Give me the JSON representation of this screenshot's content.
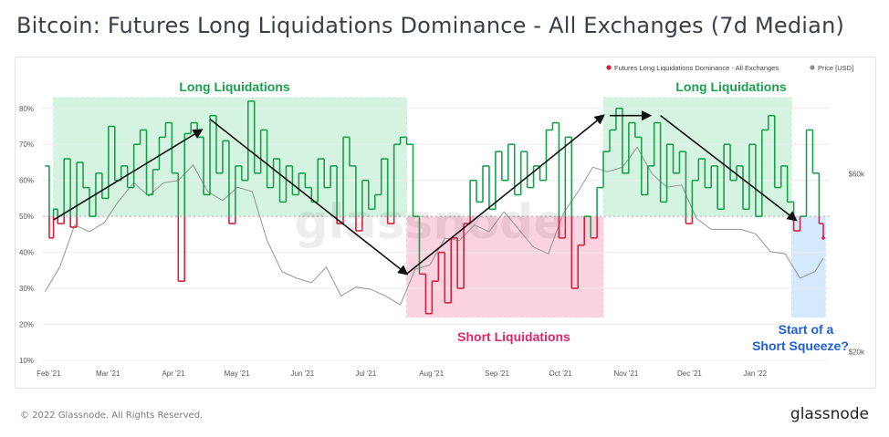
{
  "title": "Bitcoin: Futures Long Liquidations Dominance - All Exchanges (7d Median)",
  "footer": {
    "copyright": "© 2022 Glassnode. All Rights Reserved.",
    "brand": "glassnode"
  },
  "watermark": "glassnode",
  "colors": {
    "long": "#1aa04d",
    "short": "#d8203a",
    "price": "#8a8a8a",
    "long_zone": "#c6efd7",
    "short_zone": "#fac4d6",
    "squeeze_zone": "#c7e1fb",
    "long_label": "#1aa04d",
    "short_label": "#e3246a",
    "squeeze_label": "#1f5fd6"
  },
  "chart_data": {
    "type": "line",
    "x_ticks": [
      "Feb '21",
      "Mar '21",
      "Apr '21",
      "May '21",
      "Jun '21",
      "Jul '21",
      "Aug '21",
      "Sep '21",
      "Oct '21",
      "Nov '21",
      "Dec '21",
      "Jan '22"
    ],
    "y_ticks": [
      "10%",
      "20%",
      "30%",
      "40%",
      "50%",
      "60%",
      "70%",
      "80%"
    ],
    "ylim": [
      10,
      84
    ],
    "threshold": 50,
    "y2_ticks": [
      "$20k",
      "$60k"
    ],
    "y2lim": [
      18000,
      78000
    ],
    "legend": {
      "position": "top-right",
      "items": [
        {
          "name": "Futures Long Liquidations Dominance - All Exchanges",
          "color": "#d8203a"
        },
        {
          "name": "Price [USD]",
          "color": "#8a8a8a"
        }
      ]
    },
    "series": [
      {
        "name": "Futures Long Liquidations Dominance - All Exchanges",
        "x": [
          "2021-02-01",
          "2021-02-03",
          "2021-02-05",
          "2021-02-07",
          "2021-02-10",
          "2021-02-13",
          "2021-02-16",
          "2021-02-19",
          "2021-02-22",
          "2021-02-25",
          "2021-02-28",
          "2021-03-03",
          "2021-03-06",
          "2021-03-09",
          "2021-03-12",
          "2021-03-15",
          "2021-03-18",
          "2021-03-21",
          "2021-03-24",
          "2021-03-27",
          "2021-03-30",
          "2021-04-02",
          "2021-04-05",
          "2021-04-08",
          "2021-04-11",
          "2021-04-14",
          "2021-04-17",
          "2021-04-20",
          "2021-04-23",
          "2021-04-26",
          "2021-04-29",
          "2021-05-02",
          "2021-05-05",
          "2021-05-08",
          "2021-05-11",
          "2021-05-14",
          "2021-05-17",
          "2021-05-20",
          "2021-05-23",
          "2021-05-26",
          "2021-05-29",
          "2021-06-01",
          "2021-06-04",
          "2021-06-07",
          "2021-06-10",
          "2021-06-13",
          "2021-06-16",
          "2021-06-19",
          "2021-06-22",
          "2021-06-25",
          "2021-06-28",
          "2021-07-01",
          "2021-07-04",
          "2021-07-07",
          "2021-07-10",
          "2021-07-13",
          "2021-07-16",
          "2021-07-19",
          "2021-07-22",
          "2021-07-25",
          "2021-07-28",
          "2021-07-31",
          "2021-08-03",
          "2021-08-06",
          "2021-08-09",
          "2021-08-12",
          "2021-08-15",
          "2021-08-18",
          "2021-08-21",
          "2021-08-24",
          "2021-08-27",
          "2021-08-30",
          "2021-09-02",
          "2021-09-05",
          "2021-09-08",
          "2021-09-11",
          "2021-09-14",
          "2021-09-17",
          "2021-09-20",
          "2021-09-23",
          "2021-09-26",
          "2021-09-29",
          "2021-10-02",
          "2021-10-05",
          "2021-10-08",
          "2021-10-11",
          "2021-10-14",
          "2021-10-17",
          "2021-10-20",
          "2021-10-23",
          "2021-10-26",
          "2021-10-29",
          "2021-11-01",
          "2021-11-04",
          "2021-11-07",
          "2021-11-10",
          "2021-11-13",
          "2021-11-16",
          "2021-11-19",
          "2021-11-22",
          "2021-11-25",
          "2021-11-28",
          "2021-12-01",
          "2021-12-04",
          "2021-12-07",
          "2021-12-10",
          "2021-12-13",
          "2021-12-16",
          "2021-12-19",
          "2021-12-22",
          "2021-12-25",
          "2021-12-28",
          "2021-12-31",
          "2022-01-03",
          "2022-01-06",
          "2022-01-09",
          "2022-01-12",
          "2022-01-15",
          "2022-01-18",
          "2022-01-21",
          "2022-01-24",
          "2022-01-27",
          "2022-01-30",
          "2022-02-02",
          "2022-02-04"
        ],
        "values": [
          64,
          44,
          52,
          48,
          66,
          47,
          65,
          58,
          50,
          62,
          55,
          75,
          60,
          64,
          58,
          70,
          74,
          56,
          63,
          72,
          76,
          62,
          32,
          73,
          76,
          72,
          56,
          78,
          62,
          71,
          48,
          64,
          60,
          82,
          62,
          74,
          58,
          66,
          54,
          64,
          56,
          62,
          58,
          54,
          66,
          58,
          64,
          48,
          72,
          64,
          46,
          60,
          52,
          56,
          66,
          48,
          70,
          72,
          70,
          50,
          34,
          23,
          32,
          40,
          26,
          44,
          30,
          48,
          60,
          54,
          64,
          52,
          68,
          60,
          70,
          56,
          68,
          58,
          64,
          60,
          74,
          76,
          44,
          72,
          30,
          42,
          50,
          44,
          58,
          68,
          74,
          80,
          62,
          76,
          72,
          56,
          64,
          76,
          54,
          70,
          62,
          68,
          48,
          60,
          66,
          58,
          64,
          52,
          70,
          60,
          64,
          52,
          70,
          50,
          74,
          78,
          58,
          64,
          54,
          46,
          50,
          74,
          62,
          48,
          44
        ],
        "color_above": "#1aa04d",
        "color_below": "#d8203a"
      },
      {
        "name": "Price [USD]",
        "x": [
          "2021-02-01",
          "2021-02-08",
          "2021-02-15",
          "2021-02-22",
          "2021-03-01",
          "2021-03-08",
          "2021-03-15",
          "2021-03-22",
          "2021-03-29",
          "2021-04-05",
          "2021-04-12",
          "2021-04-19",
          "2021-04-26",
          "2021-05-03",
          "2021-05-10",
          "2021-05-17",
          "2021-05-24",
          "2021-05-31",
          "2021-06-07",
          "2021-06-14",
          "2021-06-21",
          "2021-06-28",
          "2021-07-05",
          "2021-07-12",
          "2021-07-19",
          "2021-07-26",
          "2021-08-02",
          "2021-08-09",
          "2021-08-16",
          "2021-08-23",
          "2021-08-30",
          "2021-09-06",
          "2021-09-13",
          "2021-09-20",
          "2021-09-27",
          "2021-10-04",
          "2021-10-11",
          "2021-10-18",
          "2021-10-25",
          "2021-11-01",
          "2021-11-08",
          "2021-11-15",
          "2021-11-22",
          "2021-11-29",
          "2021-12-06",
          "2021-12-13",
          "2021-12-20",
          "2021-12-27",
          "2022-01-03",
          "2022-01-10",
          "2022-01-17",
          "2022-01-24",
          "2022-01-31",
          "2022-02-04"
        ],
        "values": [
          33500,
          39000,
          48500,
          47000,
          49000,
          54000,
          58000,
          55000,
          58000,
          58500,
          62000,
          56000,
          54000,
          57000,
          56000,
          45000,
          38000,
          36500,
          35500,
          39000,
          32500,
          34500,
          34000,
          32500,
          30500,
          38500,
          39500,
          45500,
          45000,
          48500,
          47000,
          51500,
          47500,
          43500,
          42000,
          51000,
          56000,
          61500,
          60500,
          61500,
          66000,
          60000,
          57000,
          57500,
          50000,
          47500,
          47500,
          47500,
          46500,
          42500,
          42000,
          36500,
          38000,
          41000
        ],
        "color": "#8a8a8a"
      }
    ],
    "annotations": [
      {
        "text": "Long Liquidations",
        "color": "#1aa04d",
        "x_start": "2021-02-05",
        "x_end": "2021-07-22",
        "y_range": [
          50,
          83
        ],
        "zone_color": "#c6efd7"
      },
      {
        "text": "Short Liquidations",
        "color": "#e3246a",
        "x_start": "2021-07-22",
        "x_end": "2021-10-23",
        "y_range": [
          22,
          50
        ],
        "zone_color": "#fac4d6"
      },
      {
        "text": "Long Liquidations",
        "color": "#1aa04d",
        "x_start": "2021-10-23",
        "x_end": "2022-01-20",
        "y_range": [
          50,
          83
        ],
        "zone_color": "#c6efd7"
      },
      {
        "text_lines": [
          "Start of a",
          "Short Squeeze?"
        ],
        "color": "#1f5fd6",
        "x_start": "2022-01-20",
        "x_end": "2022-02-05",
        "y_range": [
          22,
          50
        ],
        "zone_color": "#c7e1fb"
      }
    ],
    "trend_arrows": [
      {
        "from": [
          "2021-02-05",
          49
        ],
        "to": [
          "2021-04-16",
          74
        ]
      },
      {
        "from": [
          "2021-04-20",
          77
        ],
        "to": [
          "2021-07-22",
          34
        ]
      },
      {
        "from": [
          "2021-07-22",
          34
        ],
        "to": [
          "2021-10-23",
          78
        ]
      },
      {
        "from": [
          "2021-10-26",
          78
        ],
        "to": [
          "2021-11-14",
          78
        ]
      },
      {
        "from": [
          "2021-11-19",
          78
        ],
        "to": [
          "2022-01-22",
          49
        ]
      }
    ]
  }
}
